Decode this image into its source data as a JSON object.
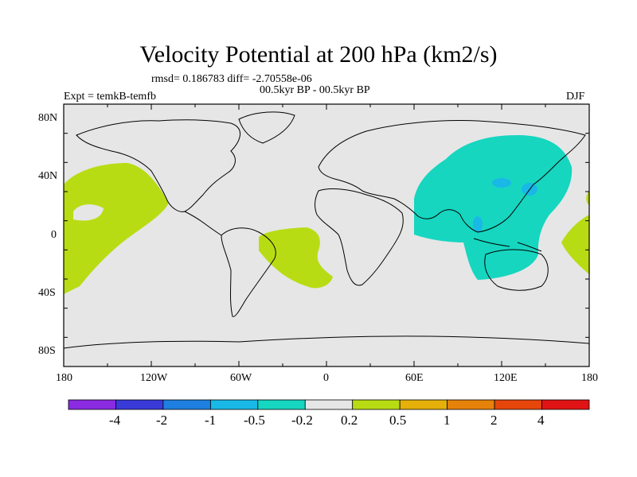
{
  "title": "Velocity Potential at 200 hPa (km2/s)",
  "stats": "rmsd= 0.186783 diff= -2.70558e-06",
  "period": "00.5kyr BP - 00.5kyr BP",
  "expt": "Expt = temkB-temfb",
  "season": "DJF",
  "lat_ticks": [
    "80N",
    "40N",
    "0",
    "40S",
    "80S"
  ],
  "lon_ticks": [
    "180",
    "120W",
    "60W",
    "0",
    "60E",
    "120E",
    "180"
  ],
  "colorbar": {
    "labels": [
      "-4",
      "-2",
      "-1",
      "-0.5",
      "-0.2",
      "0.2",
      "0.5",
      "1",
      "2",
      "4"
    ],
    "colors": [
      "#8a2be2",
      "#3a3ad8",
      "#1e7fe0",
      "#19b8e6",
      "#16d6c0",
      "#e6e6e6",
      "#b8dc14",
      "#e6b00a",
      "#e6820a",
      "#e6460a",
      "#e01414"
    ]
  },
  "colors": {
    "ocean_land": "#e6e6e6",
    "positive": "#b8dc14",
    "negative": "#16d6c0",
    "strong_negative": "#19b8e6"
  }
}
